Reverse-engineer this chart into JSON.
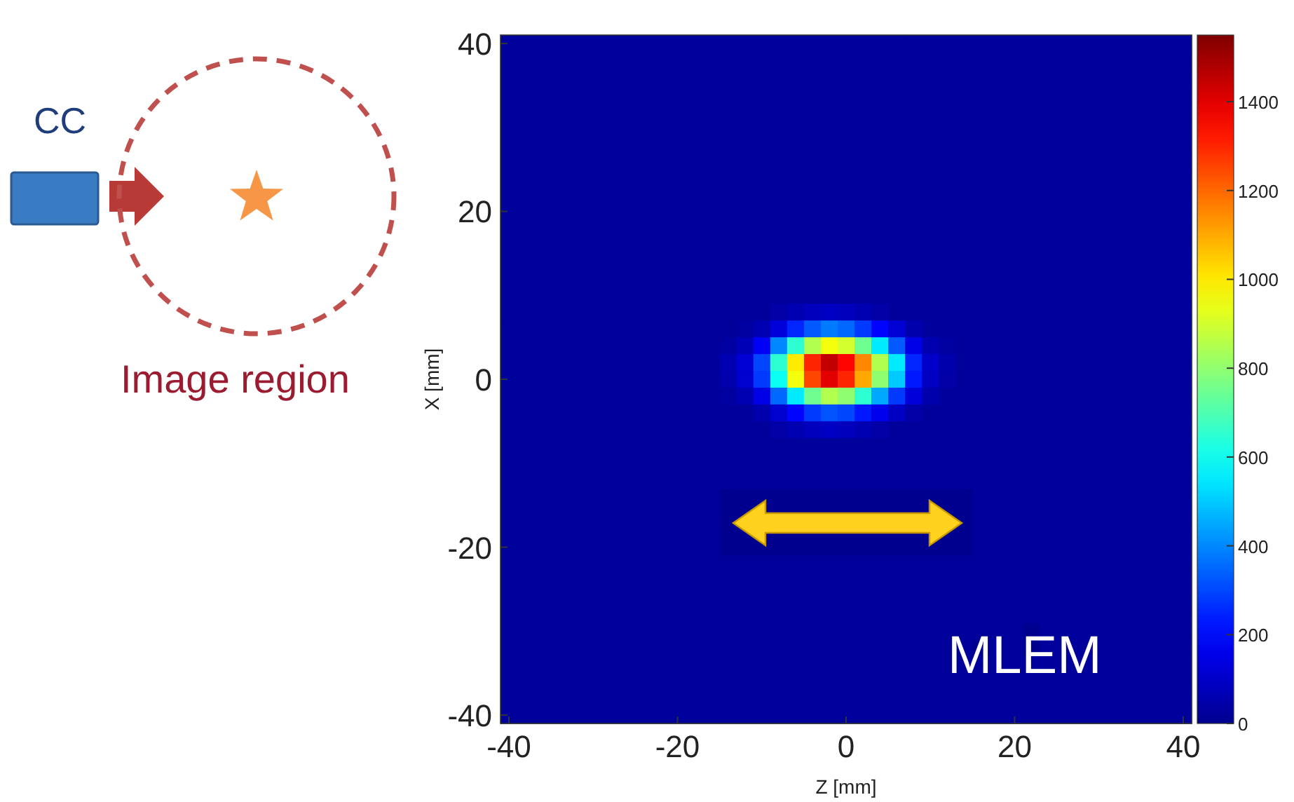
{
  "chart_data": {
    "type": "heatmap",
    "xlabel": "Z [mm]",
    "ylabel": "X [mm]",
    "annotations": [
      "CC",
      "Image region",
      "MLEM"
    ],
    "clim": [
      0,
      1550
    ],
    "cticks": [
      0,
      200,
      400,
      600,
      800,
      1000,
      1200,
      1400
    ],
    "categories": [
      "-40",
      null,
      null,
      null,
      null,
      null,
      null,
      null,
      null,
      null,
      "-20",
      null,
      null,
      null,
      null,
      null,
      null,
      null,
      null,
      null,
      "0",
      null,
      null,
      null,
      null,
      null,
      null,
      null,
      null,
      null,
      "20",
      null,
      null,
      null,
      null,
      null,
      null,
      null,
      null,
      null,
      "40"
    ],
    "y_categories": [
      "40",
      null,
      null,
      null,
      null,
      null,
      null,
      null,
      null,
      null,
      "20",
      null,
      null,
      null,
      null,
      null,
      null,
      null,
      null,
      null,
      "0",
      null,
      null,
      null,
      null,
      null,
      null,
      null,
      null,
      null,
      "-20",
      null,
      null,
      null,
      null,
      null,
      null,
      null,
      null,
      null,
      "-40"
    ],
    "cells": [
      [
        20,
        20,
        20,
        20,
        20,
        20,
        20,
        20,
        20,
        20,
        20,
        20,
        20,
        20,
        20,
        20,
        20,
        20,
        20,
        20,
        20,
        20,
        20,
        20,
        20,
        20,
        20,
        20,
        20,
        20,
        20,
        20,
        20,
        20,
        20,
        20,
        20,
        20,
        20,
        20,
        20
      ],
      [
        20,
        20,
        20,
        20,
        20,
        20,
        20,
        20,
        20,
        20,
        20,
        20,
        20,
        20,
        20,
        20,
        20,
        20,
        20,
        20,
        20,
        20,
        20,
        20,
        20,
        20,
        20,
        20,
        20,
        20,
        20,
        20,
        20,
        20,
        20,
        20,
        20,
        20,
        20,
        20,
        20
      ],
      [
        20,
        20,
        20,
        20,
        20,
        20,
        20,
        20,
        20,
        20,
        20,
        20,
        20,
        20,
        20,
        20,
        20,
        20,
        20,
        20,
        20,
        20,
        20,
        20,
        20,
        20,
        20,
        20,
        20,
        20,
        20,
        20,
        20,
        20,
        20,
        20,
        20,
        20,
        20,
        20,
        20
      ],
      [
        20,
        20,
        20,
        20,
        20,
        20,
        20,
        20,
        20,
        20,
        20,
        20,
        20,
        20,
        20,
        20,
        20,
        20,
        20,
        20,
        20,
        20,
        20,
        20,
        20,
        20,
        20,
        20,
        20,
        20,
        20,
        20,
        20,
        20,
        20,
        20,
        20,
        20,
        20,
        20,
        20
      ],
      [
        20,
        20,
        20,
        20,
        20,
        20,
        20,
        20,
        20,
        20,
        20,
        20,
        20,
        20,
        20,
        20,
        20,
        20,
        20,
        20,
        20,
        20,
        20,
        20,
        20,
        20,
        20,
        20,
        20,
        20,
        20,
        20,
        20,
        20,
        20,
        20,
        20,
        20,
        20,
        20,
        20
      ],
      [
        20,
        20,
        20,
        20,
        20,
        20,
        20,
        20,
        20,
        20,
        20,
        20,
        20,
        20,
        20,
        20,
        20,
        20,
        20,
        20,
        20,
        20,
        20,
        20,
        20,
        20,
        20,
        20,
        20,
        20,
        20,
        20,
        20,
        20,
        20,
        20,
        20,
        20,
        20,
        20,
        20
      ],
      [
        20,
        20,
        20,
        20,
        20,
        20,
        20,
        20,
        20,
        20,
        20,
        20,
        20,
        20,
        20,
        20,
        20,
        20,
        20,
        20,
        20,
        20,
        20,
        20,
        20,
        20,
        20,
        20,
        20,
        20,
        20,
        20,
        20,
        20,
        20,
        20,
        20,
        20,
        20,
        20,
        20
      ],
      [
        20,
        20,
        20,
        20,
        20,
        20,
        20,
        20,
        20,
        20,
        20,
        20,
        20,
        20,
        20,
        20,
        20,
        20,
        20,
        20,
        20,
        20,
        20,
        20,
        20,
        20,
        20,
        20,
        20,
        20,
        20,
        20,
        20,
        20,
        20,
        20,
        20,
        20,
        20,
        20,
        20
      ],
      [
        20,
        20,
        20,
        20,
        20,
        20,
        20,
        20,
        20,
        20,
        20,
        20,
        20,
        20,
        20,
        20,
        20,
        20,
        20,
        20,
        20,
        20,
        20,
        20,
        20,
        20,
        20,
        20,
        20,
        20,
        20,
        20,
        20,
        20,
        20,
        20,
        20,
        20,
        20,
        20,
        20
      ],
      [
        20,
        20,
        20,
        20,
        20,
        20,
        20,
        20,
        20,
        20,
        20,
        20,
        20,
        20,
        20,
        20,
        20,
        20,
        20,
        20,
        20,
        20,
        20,
        20,
        20,
        20,
        20,
        20,
        20,
        20,
        20,
        20,
        20,
        20,
        20,
        20,
        20,
        20,
        20,
        20,
        20
      ],
      [
        20,
        20,
        20,
        20,
        20,
        20,
        20,
        20,
        20,
        20,
        20,
        20,
        20,
        20,
        20,
        20,
        20,
        20,
        20,
        20,
        20,
        20,
        20,
        20,
        20,
        20,
        20,
        20,
        20,
        20,
        20,
        20,
        20,
        20,
        20,
        20,
        20,
        20,
        20,
        20,
        20
      ],
      [
        20,
        20,
        20,
        20,
        20,
        20,
        20,
        20,
        20,
        20,
        20,
        20,
        20,
        20,
        20,
        20,
        20,
        20,
        20,
        20,
        20,
        20,
        20,
        20,
        20,
        20,
        20,
        20,
        20,
        20,
        20,
        20,
        20,
        20,
        20,
        20,
        20,
        20,
        20,
        20,
        20
      ],
      [
        20,
        20,
        20,
        20,
        20,
        20,
        20,
        20,
        20,
        20,
        20,
        20,
        20,
        20,
        20,
        20,
        20,
        20,
        20,
        20,
        20,
        20,
        20,
        20,
        20,
        20,
        20,
        20,
        20,
        20,
        20,
        20,
        20,
        20,
        20,
        20,
        20,
        20,
        20,
        20,
        20
      ],
      [
        20,
        20,
        20,
        20,
        20,
        20,
        20,
        20,
        20,
        20,
        20,
        20,
        20,
        20,
        20,
        20,
        20,
        20,
        20,
        20,
        20,
        20,
        20,
        20,
        20,
        20,
        20,
        20,
        20,
        20,
        20,
        20,
        20,
        20,
        20,
        20,
        20,
        20,
        20,
        20,
        20
      ],
      [
        20,
        20,
        20,
        20,
        20,
        20,
        20,
        20,
        20,
        20,
        20,
        20,
        20,
        20,
        20,
        20,
        20,
        20,
        20,
        20,
        20,
        20,
        20,
        20,
        20,
        20,
        20,
        20,
        20,
        20,
        20,
        20,
        20,
        20,
        20,
        20,
        20,
        20,
        20,
        20,
        20
      ],
      [
        20,
        20,
        20,
        20,
        20,
        20,
        20,
        20,
        20,
        20,
        20,
        20,
        20,
        20,
        20,
        20,
        20,
        20,
        20,
        20,
        20,
        20,
        20,
        20,
        20,
        20,
        20,
        20,
        20,
        20,
        20,
        20,
        20,
        20,
        20,
        20,
        20,
        20,
        20,
        20,
        20
      ],
      [
        20,
        20,
        20,
        20,
        20,
        20,
        20,
        20,
        20,
        20,
        20,
        20,
        20,
        20,
        20,
        20,
        40,
        60,
        80,
        90,
        80,
        60,
        40,
        20,
        20,
        20,
        20,
        20,
        20,
        20,
        20,
        20,
        20,
        20,
        20,
        20,
        20,
        20,
        20,
        20,
        20
      ],
      [
        20,
        20,
        20,
        20,
        20,
        20,
        20,
        20,
        20,
        20,
        20,
        20,
        20,
        20,
        30,
        60,
        130,
        250,
        330,
        380,
        350,
        280,
        200,
        120,
        50,
        25,
        20,
        20,
        20,
        20,
        20,
        20,
        20,
        20,
        20,
        20,
        20,
        20,
        20,
        20,
        20
      ],
      [
        20,
        20,
        20,
        20,
        20,
        20,
        20,
        20,
        20,
        20,
        20,
        20,
        20,
        30,
        70,
        180,
        400,
        650,
        850,
        950,
        900,
        750,
        550,
        330,
        150,
        60,
        30,
        20,
        20,
        20,
        20,
        20,
        20,
        20,
        20,
        20,
        20,
        20,
        20,
        20,
        20
      ],
      [
        20,
        20,
        20,
        20,
        20,
        20,
        20,
        20,
        20,
        20,
        20,
        20,
        20,
        60,
        120,
        300,
        650,
        1000,
        1300,
        1450,
        1350,
        1150,
        850,
        550,
        250,
        100,
        50,
        20,
        20,
        20,
        20,
        20,
        20,
        20,
        20,
        20,
        20,
        20,
        20,
        20,
        20
      ],
      [
        20,
        20,
        20,
        20,
        20,
        20,
        20,
        20,
        20,
        20,
        20,
        20,
        20,
        50,
        110,
        280,
        600,
        950,
        1250,
        1400,
        1300,
        1100,
        800,
        500,
        230,
        90,
        40,
        20,
        20,
        20,
        20,
        20,
        20,
        20,
        20,
        20,
        20,
        20,
        20,
        20,
        20
      ],
      [
        20,
        20,
        20,
        20,
        20,
        20,
        20,
        20,
        20,
        20,
        20,
        20,
        20,
        30,
        60,
        150,
        350,
        550,
        750,
        850,
        800,
        650,
        450,
        280,
        130,
        50,
        25,
        20,
        20,
        20,
        20,
        20,
        20,
        20,
        20,
        20,
        20,
        20,
        20,
        20,
        20
      ],
      [
        20,
        20,
        20,
        20,
        20,
        20,
        20,
        20,
        20,
        20,
        20,
        20,
        20,
        20,
        25,
        50,
        110,
        200,
        280,
        320,
        300,
        230,
        160,
        90,
        40,
        20,
        20,
        20,
        20,
        20,
        20,
        20,
        20,
        20,
        20,
        20,
        20,
        20,
        20,
        20,
        20
      ],
      [
        20,
        20,
        20,
        20,
        20,
        20,
        20,
        20,
        20,
        20,
        20,
        20,
        20,
        20,
        20,
        20,
        40,
        60,
        80,
        90,
        80,
        60,
        40,
        20,
        20,
        20,
        20,
        20,
        20,
        20,
        20,
        20,
        20,
        20,
        20,
        20,
        20,
        20,
        20,
        20,
        20
      ],
      [
        20,
        20,
        20,
        20,
        20,
        20,
        20,
        20,
        20,
        20,
        20,
        20,
        20,
        20,
        20,
        20,
        20,
        20,
        20,
        20,
        20,
        20,
        20,
        20,
        20,
        20,
        20,
        20,
        20,
        20,
        20,
        20,
        20,
        20,
        20,
        20,
        20,
        20,
        20,
        20,
        20
      ],
      [
        20,
        20,
        20,
        20,
        20,
        20,
        20,
        20,
        20,
        20,
        20,
        20,
        20,
        20,
        20,
        20,
        20,
        20,
        20,
        20,
        20,
        20,
        20,
        20,
        20,
        20,
        20,
        20,
        20,
        20,
        20,
        20,
        20,
        20,
        20,
        20,
        20,
        20,
        20,
        20,
        20
      ],
      [
        20,
        20,
        20,
        20,
        20,
        20,
        20,
        20,
        20,
        20,
        20,
        20,
        20,
        20,
        20,
        20,
        20,
        20,
        20,
        20,
        20,
        20,
        20,
        20,
        20,
        20,
        20,
        20,
        20,
        20,
        20,
        20,
        20,
        20,
        20,
        20,
        20,
        20,
        20,
        20,
        20
      ],
      [
        20,
        20,
        20,
        20,
        20,
        20,
        20,
        20,
        20,
        20,
        20,
        20,
        20,
        null,
        null,
        null,
        null,
        null,
        null,
        null,
        null,
        null,
        null,
        null,
        null,
        null,
        null,
        null,
        20,
        20,
        20,
        20,
        20,
        20,
        20,
        20,
        20,
        20,
        20,
        20,
        20
      ],
      [
        20,
        20,
        20,
        20,
        20,
        20,
        20,
        20,
        20,
        20,
        20,
        20,
        20,
        null,
        null,
        null,
        null,
        null,
        null,
        null,
        null,
        null,
        null,
        null,
        null,
        null,
        null,
        null,
        20,
        20,
        20,
        20,
        20,
        20,
        20,
        20,
        20,
        20,
        20,
        20,
        20
      ],
      [
        20,
        20,
        20,
        20,
        20,
        20,
        20,
        20,
        20,
        20,
        20,
        20,
        20,
        null,
        null,
        null,
        null,
        null,
        null,
        null,
        null,
        null,
        null,
        null,
        null,
        null,
        null,
        null,
        20,
        20,
        20,
        20,
        20,
        20,
        20,
        20,
        20,
        20,
        20,
        20,
        20
      ],
      [
        20,
        20,
        20,
        20,
        20,
        20,
        20,
        20,
        20,
        20,
        20,
        20,
        20,
        null,
        null,
        null,
        null,
        null,
        null,
        null,
        null,
        null,
        null,
        null,
        null,
        null,
        null,
        null,
        20,
        20,
        20,
        20,
        20,
        20,
        20,
        20,
        20,
        20,
        20,
        20,
        20
      ],
      [
        20,
        20,
        20,
        20,
        20,
        20,
        20,
        20,
        20,
        20,
        20,
        20,
        20,
        20,
        20,
        20,
        20,
        20,
        20,
        20,
        20,
        20,
        20,
        20,
        20,
        20,
        20,
        20,
        20,
        20,
        20,
        20,
        20,
        20,
        20,
        20,
        20,
        20,
        20,
        20,
        20
      ],
      [
        20,
        20,
        20,
        20,
        20,
        20,
        20,
        20,
        20,
        20,
        20,
        20,
        20,
        20,
        20,
        20,
        20,
        20,
        20,
        20,
        20,
        20,
        20,
        20,
        20,
        20,
        20,
        20,
        20,
        20,
        20,
        20,
        20,
        20,
        20,
        20,
        20,
        20,
        20,
        20,
        20
      ],
      [
        20,
        20,
        20,
        20,
        20,
        20,
        20,
        20,
        20,
        20,
        20,
        20,
        20,
        20,
        20,
        20,
        20,
        20,
        20,
        20,
        20,
        20,
        20,
        20,
        20,
        20,
        20,
        20,
        20,
        20,
        20,
        20,
        20,
        20,
        20,
        20,
        20,
        20,
        20,
        20,
        20
      ],
      [
        20,
        20,
        20,
        20,
        20,
        20,
        20,
        20,
        20,
        20,
        20,
        20,
        20,
        20,
        20,
        20,
        20,
        20,
        20,
        20,
        20,
        20,
        20,
        20,
        20,
        20,
        20,
        20,
        20,
        20,
        20,
        20,
        20,
        20,
        20,
        20,
        20,
        20,
        20,
        20,
        20
      ],
      [
        20,
        20,
        20,
        20,
        20,
        20,
        20,
        20,
        20,
        20,
        20,
        20,
        20,
        20,
        20,
        20,
        20,
        20,
        20,
        20,
        20,
        20,
        20,
        20,
        20,
        20,
        20,
        20,
        20,
        20,
        20,
        null,
        20,
        20,
        20,
        20,
        20,
        20,
        20,
        20,
        20
      ],
      [
        20,
        20,
        20,
        20,
        20,
        20,
        20,
        20,
        20,
        20,
        20,
        20,
        20,
        20,
        20,
        20,
        20,
        20,
        20,
        20,
        20,
        20,
        20,
        20,
        20,
        20,
        20,
        20,
        null,
        20,
        20,
        null,
        20,
        20,
        20,
        20,
        20,
        20,
        20,
        20,
        20
      ],
      [
        20,
        20,
        20,
        20,
        20,
        20,
        20,
        20,
        20,
        20,
        20,
        20,
        20,
        20,
        20,
        20,
        20,
        20,
        20,
        20,
        20,
        20,
        20,
        20,
        20,
        20,
        20,
        20,
        20,
        20,
        20,
        20,
        20,
        20,
        20,
        20,
        20,
        20,
        20,
        20,
        20
      ],
      [
        20,
        20,
        20,
        20,
        20,
        20,
        20,
        20,
        20,
        20,
        20,
        20,
        20,
        20,
        20,
        20,
        20,
        20,
        20,
        20,
        20,
        20,
        20,
        20,
        20,
        20,
        20,
        20,
        20,
        20,
        20,
        20,
        20,
        20,
        20,
        20,
        20,
        20,
        20,
        20,
        20
      ],
      [
        20,
        20,
        20,
        20,
        20,
        20,
        20,
        20,
        20,
        20,
        20,
        20,
        20,
        20,
        20,
        20,
        20,
        20,
        20,
        20,
        20,
        20,
        20,
        20,
        20,
        20,
        20,
        20,
        20,
        20,
        20,
        20,
        20,
        20,
        20,
        20,
        20,
        20,
        20,
        20,
        20
      ],
      [
        20,
        20,
        20,
        20,
        20,
        20,
        20,
        20,
        20,
        20,
        20,
        20,
        20,
        20,
        20,
        20,
        20,
        20,
        20,
        20,
        20,
        20,
        20,
        20,
        20,
        20,
        20,
        20,
        20,
        20,
        20,
        20,
        20,
        20,
        20,
        20,
        20,
        20,
        20,
        20,
        20
      ]
    ]
  }
}
